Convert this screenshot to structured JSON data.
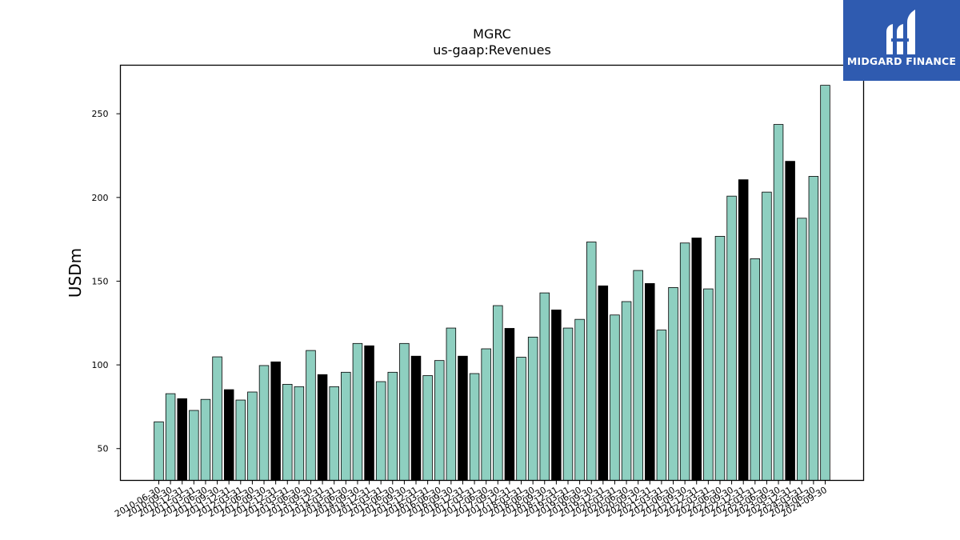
{
  "chart_data": {
    "type": "bar",
    "title": "MGRC",
    "subtitle": "us-gaap:Revenues",
    "xlabel": "",
    "ylabel": "USDm",
    "ylim": [
      31,
      279
    ],
    "yticks": [
      50,
      100,
      150,
      200,
      250
    ],
    "categories": [
      "2010-06-30",
      "2010-09-30",
      "2010-12-31",
      "2011-03-31",
      "2011-06-30",
      "2011-09-30",
      "2011-12-31",
      "2012-03-31",
      "2012-06-30",
      "2012-09-30",
      "2012-12-31",
      "2013-03-31",
      "2013-06-30",
      "2013-09-30",
      "2013-12-31",
      "2014-03-31",
      "2014-06-30",
      "2014-09-30",
      "2014-12-31",
      "2015-03-31",
      "2015-06-30",
      "2015-09-30",
      "2015-12-31",
      "2016-03-31",
      "2016-06-30",
      "2016-09-30",
      "2016-12-31",
      "2017-03-31",
      "2017-06-30",
      "2017-09-30",
      "2017-12-31",
      "2018-03-31",
      "2018-06-30",
      "2018-09-30",
      "2018-12-31",
      "2019-03-31",
      "2019-06-30",
      "2019-09-30",
      "2019-12-31",
      "2020-03-31",
      "2020-06-30",
      "2020-09-30",
      "2020-12-31",
      "2021-03-31",
      "2021-06-30",
      "2021-09-30",
      "2021-12-31",
      "2022-03-31",
      "2022-06-30",
      "2022-09-30",
      "2022-12-31",
      "2023-03-31",
      "2023-06-30",
      "2023-09-30",
      "2023-12-31",
      "2024-03-31",
      "2024-06-30",
      "2024-09-30"
    ],
    "values": [
      66,
      82.8,
      79.8,
      72.8,
      79.4,
      104.8,
      85.2,
      79,
      83.8,
      99.6,
      101.8,
      88.4,
      87,
      108.6,
      94.2,
      87,
      95.6,
      112.8,
      111.4,
      90,
      95.6,
      112.8,
      105.2,
      93.6,
      102.6,
      122,
      105.2,
      94.8,
      109.6,
      135.4,
      121.8,
      104.6,
      116.6,
      143,
      132.8,
      122,
      127.2,
      173.4,
      147.2,
      129.8,
      137.8,
      156.4,
      148.6,
      120.8,
      146.2,
      172.8,
      175.8,
      145.4,
      176.8,
      200.8,
      210.6,
      163.4,
      203.2,
      243.6,
      221.6,
      187.6,
      212.6,
      267
    ],
    "highlight_color": "#000000",
    "bar_color": "#8ecfc0",
    "highlight_every": 4,
    "highlight_offset": 2,
    "grid": false,
    "legend": "none"
  },
  "logo": {
    "text": "MIDGARD FINANCE",
    "background": "#2f5bb0"
  }
}
